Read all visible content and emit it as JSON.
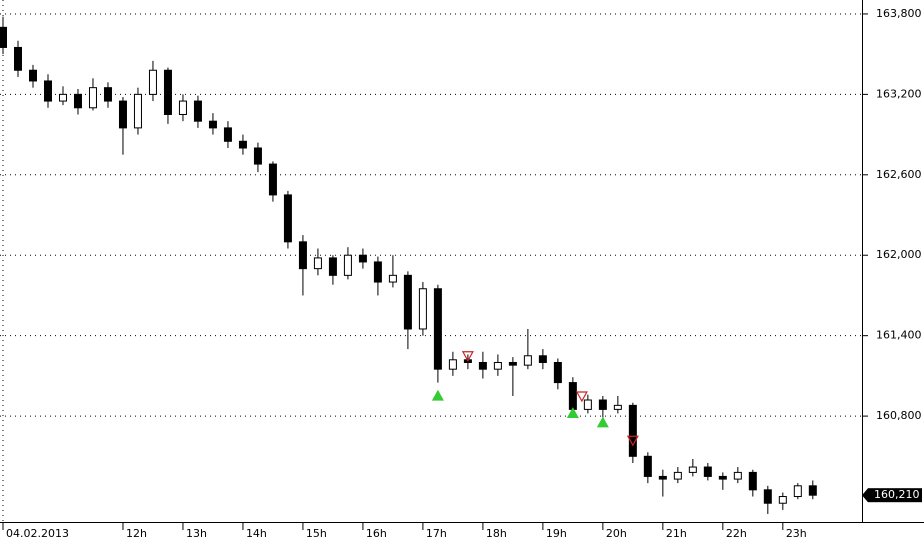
{
  "chart_data": {
    "type": "candlestick",
    "x": [
      10,
      10.25,
      10.5,
      10.75,
      11,
      11.25,
      11.5,
      11.75,
      12,
      12.25,
      12.5,
      12.75,
      13,
      13.25,
      13.5,
      13.75,
      14,
      14.25,
      14.5,
      14.75,
      15,
      15.25,
      15.5,
      15.75,
      16,
      16.25,
      16.5,
      16.75,
      17,
      17.25,
      17.5,
      17.75,
      18,
      18.25,
      18.5,
      18.75,
      19,
      19.25,
      19.5,
      19.75,
      20,
      20.25,
      20.5,
      20.75,
      21,
      21.25,
      21.5,
      21.75,
      22,
      22.25,
      22.5,
      22.75,
      23,
      23.25,
      23.5
    ],
    "open": [
      163700,
      163550,
      163380,
      163300,
      163150,
      163200,
      163100,
      163250,
      163150,
      162950,
      163200,
      163380,
      163050,
      163150,
      163000,
      162950,
      162850,
      162800,
      162680,
      162450,
      162100,
      161900,
      161980,
      161850,
      162000,
      161950,
      161800,
      161850,
      161450,
      161750,
      161150,
      161220,
      161200,
      161150,
      161200,
      161180,
      161250,
      161200,
      161050,
      160850,
      160920,
      160850,
      160880,
      160500,
      160350,
      160330,
      160380,
      160420,
      160350,
      160330,
      160380,
      160250,
      160150,
      160200,
      160280
    ],
    "high": [
      163780,
      163600,
      163420,
      163350,
      163260,
      163240,
      163320,
      163290,
      163180,
      163250,
      163450,
      163400,
      163200,
      163190,
      163060,
      163000,
      162900,
      162840,
      162700,
      162480,
      162150,
      162050,
      162000,
      162060,
      162050,
      161990,
      162000,
      161880,
      161800,
      161780,
      161280,
      161260,
      161280,
      161260,
      161240,
      161450,
      161300,
      161230,
      161090,
      160960,
      160950,
      160950,
      160900,
      160530,
      160400,
      160420,
      160480,
      160450,
      160380,
      160420,
      160400,
      160280,
      160230,
      160300,
      160320
    ],
    "low": [
      163500,
      163330,
      163250,
      163100,
      163120,
      163050,
      163080,
      163100,
      162750,
      162900,
      163150,
      162980,
      163000,
      162950,
      162900,
      162800,
      162750,
      162620,
      162400,
      162050,
      161700,
      161850,
      161780,
      161820,
      161900,
      161700,
      161760,
      161300,
      161400,
      161050,
      161100,
      161150,
      161080,
      161100,
      160950,
      161150,
      161150,
      161000,
      160800,
      160820,
      160780,
      160820,
      160450,
      160300,
      160200,
      160300,
      160350,
      160320,
      160250,
      160300,
      160200,
      160070,
      160100,
      160180,
      160180
    ],
    "close": [
      163550,
      163380,
      163300,
      163150,
      163200,
      163100,
      163250,
      163150,
      162950,
      163200,
      163380,
      163050,
      163150,
      163000,
      162950,
      162850,
      162800,
      162680,
      162450,
      162100,
      161900,
      161980,
      161850,
      162000,
      161950,
      161800,
      161850,
      161450,
      161750,
      161150,
      161220,
      161200,
      161150,
      161200,
      161180,
      161250,
      161200,
      161050,
      160850,
      160920,
      160850,
      160880,
      160500,
      160350,
      160330,
      160380,
      160420,
      160350,
      160330,
      160380,
      160250,
      160150,
      160200,
      160280,
      160210
    ],
    "up_color": "#ffffff",
    "down_color": "#000000",
    "buy_signals": {
      "color": "#33cc33",
      "x": [
        17.25,
        19.5,
        20
      ],
      "y": [
        160950,
        160820,
        160750
      ]
    },
    "sell_signals": {
      "color": "#cc2222",
      "x": [
        17.75,
        19.65,
        20.5
      ],
      "y": [
        161250,
        160950,
        160620
      ]
    },
    "last_price": {
      "value": 160210,
      "label": "160,210"
    },
    "xlim": [
      9.95,
      24.32
    ],
    "xticks": [
      {
        "value": 10,
        "label": "04.02.2013"
      },
      {
        "value": 12,
        "label": "12h"
      },
      {
        "value": 13,
        "label": "13h"
      },
      {
        "value": 14,
        "label": "14h"
      },
      {
        "value": 15,
        "label": "15h"
      },
      {
        "value": 16,
        "label": "16h"
      },
      {
        "value": 17,
        "label": "17h"
      },
      {
        "value": 18,
        "label": "18h"
      },
      {
        "value": 19,
        "label": "19h"
      },
      {
        "value": 20,
        "label": "20h"
      },
      {
        "value": 21,
        "label": "21h"
      },
      {
        "value": 22,
        "label": "22h"
      },
      {
        "value": 23,
        "label": "23h"
      }
    ],
    "ylim": [
      160010,
      163904
    ],
    "yticks": [
      {
        "value": 160800,
        "label": "160,800"
      },
      {
        "value": 161400,
        "label": "161,400"
      },
      {
        "value": 162000,
        "label": "162,000"
      },
      {
        "value": 162600,
        "label": "162,600"
      },
      {
        "value": 163200,
        "label": "163,200"
      },
      {
        "value": 163800,
        "label": "163,800"
      }
    ],
    "grid": true
  }
}
